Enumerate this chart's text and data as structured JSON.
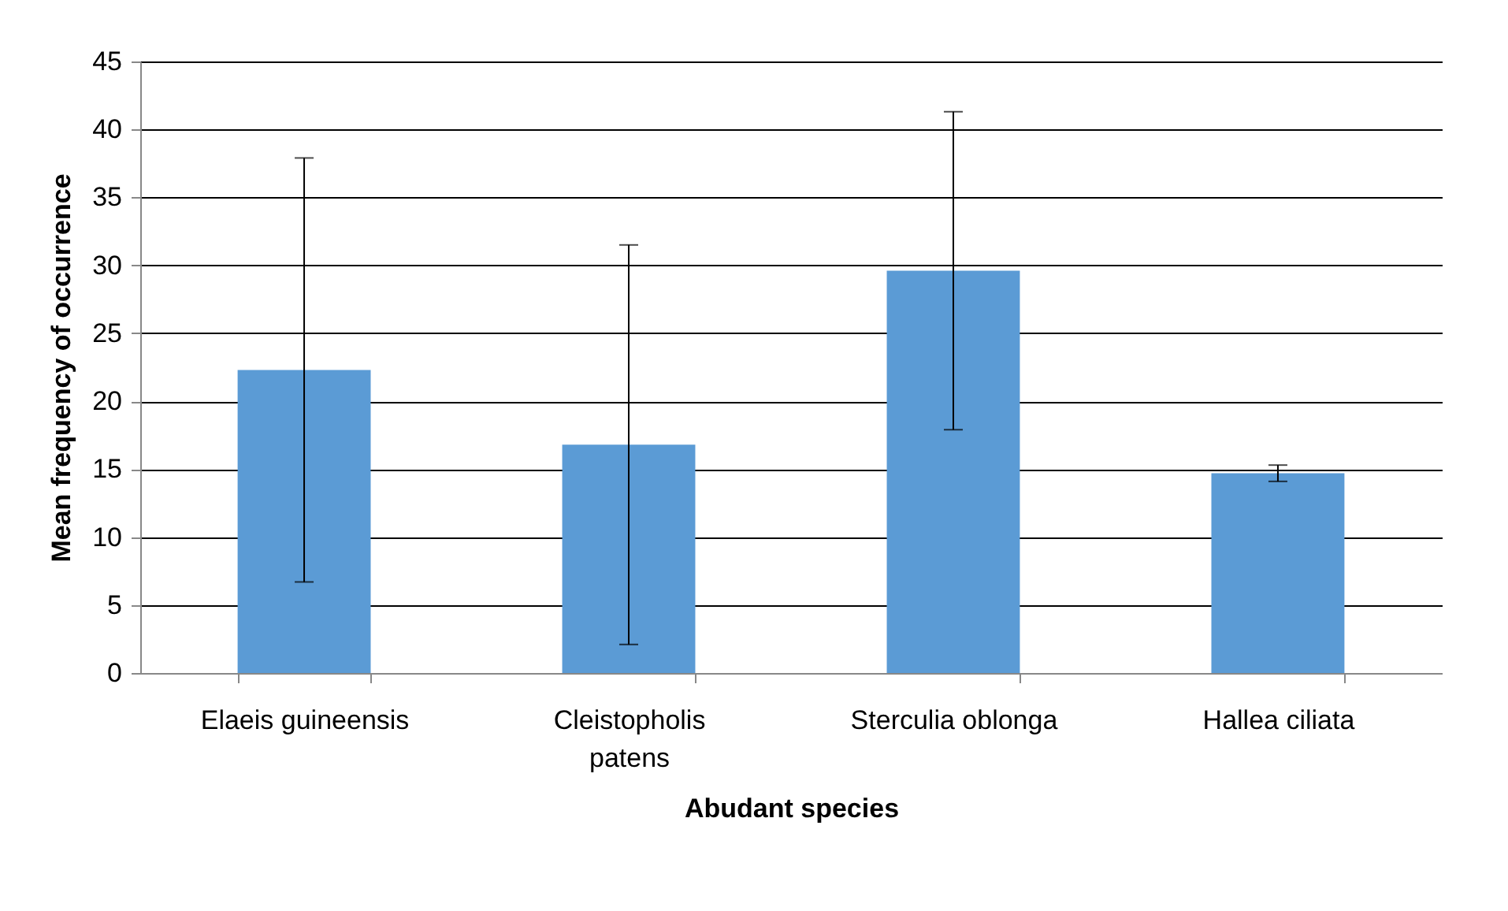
{
  "chart_data": {
    "type": "bar",
    "xlabel": "Abudant species",
    "ylabel": "Mean frequency of occurrence",
    "categories": [
      "Elaeis guineensis",
      "Cleistopholis patens",
      "Sterculia oblonga",
      "Hallea ciliata"
    ],
    "values": [
      22.3,
      16.8,
      29.6,
      14.7
    ],
    "errors": [
      15.6,
      14.7,
      11.7,
      0.6
    ],
    "color": "#5b9bd5",
    "ylim": [
      0,
      45
    ],
    "yticks": [
      0,
      5,
      10,
      15,
      20,
      25,
      30,
      35,
      40,
      45
    ],
    "grid": "y"
  }
}
